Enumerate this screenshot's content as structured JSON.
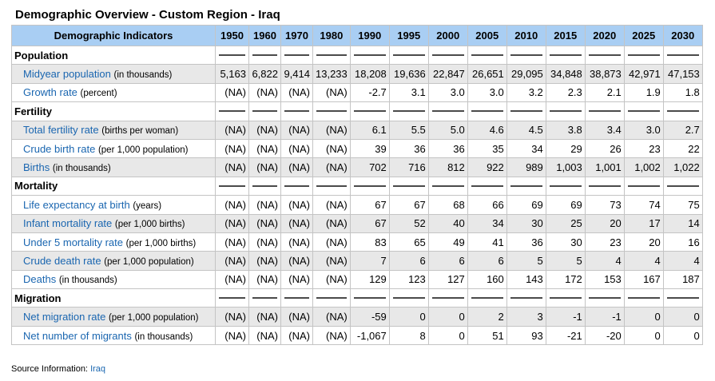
{
  "title": "Demographic Overview - Custom Region - Iraq",
  "header": {
    "indicator_label": "Demographic Indicators",
    "years": [
      "1950",
      "1960",
      "1970",
      "1980",
      "1990",
      "1995",
      "2000",
      "2005",
      "2010",
      "2015",
      "2020",
      "2025",
      "2030"
    ]
  },
  "sections": [
    {
      "name": "Population",
      "rows": [
        {
          "label": "Midyear population",
          "unit": "(in thousands)",
          "values": [
            "5,163",
            "6,822",
            "9,414",
            "13,233",
            "18,208",
            "19,636",
            "22,847",
            "26,651",
            "29,095",
            "34,848",
            "38,873",
            "42,971",
            "47,153"
          ]
        },
        {
          "label": "Growth rate",
          "unit": "(percent)",
          "values": [
            "(NA)",
            "(NA)",
            "(NA)",
            "(NA)",
            "-2.7",
            "3.1",
            "3.0",
            "3.0",
            "3.2",
            "2.3",
            "2.1",
            "1.9",
            "1.8"
          ]
        }
      ]
    },
    {
      "name": "Fertility",
      "rows": [
        {
          "label": "Total fertility rate",
          "unit": "(births per woman)",
          "values": [
            "(NA)",
            "(NA)",
            "(NA)",
            "(NA)",
            "6.1",
            "5.5",
            "5.0",
            "4.6",
            "4.5",
            "3.8",
            "3.4",
            "3.0",
            "2.7"
          ]
        },
        {
          "label": "Crude birth rate",
          "unit": "(per 1,000 population)",
          "values": [
            "(NA)",
            "(NA)",
            "(NA)",
            "(NA)",
            "39",
            "36",
            "36",
            "35",
            "34",
            "29",
            "26",
            "23",
            "22"
          ]
        },
        {
          "label": "Births",
          "unit": "(in thousands)",
          "values": [
            "(NA)",
            "(NA)",
            "(NA)",
            "(NA)",
            "702",
            "716",
            "812",
            "922",
            "989",
            "1,003",
            "1,001",
            "1,002",
            "1,022"
          ]
        }
      ]
    },
    {
      "name": "Mortality",
      "rows": [
        {
          "label": "Life expectancy at birth",
          "unit": "(years)",
          "values": [
            "(NA)",
            "(NA)",
            "(NA)",
            "(NA)",
            "67",
            "67",
            "68",
            "66",
            "69",
            "69",
            "73",
            "74",
            "75"
          ]
        },
        {
          "label": "Infant mortality rate",
          "unit": "(per 1,000 births)",
          "values": [
            "(NA)",
            "(NA)",
            "(NA)",
            "(NA)",
            "67",
            "52",
            "40",
            "34",
            "30",
            "25",
            "20",
            "17",
            "14"
          ]
        },
        {
          "label": "Under 5 mortality rate",
          "unit": "(per 1,000 births)",
          "values": [
            "(NA)",
            "(NA)",
            "(NA)",
            "(NA)",
            "83",
            "65",
            "49",
            "41",
            "36",
            "30",
            "23",
            "20",
            "16"
          ]
        },
        {
          "label": "Crude death rate",
          "unit": "(per 1,000 population)",
          "values": [
            "(NA)",
            "(NA)",
            "(NA)",
            "(NA)",
            "7",
            "6",
            "6",
            "6",
            "5",
            "5",
            "4",
            "4",
            "4"
          ]
        },
        {
          "label": "Deaths",
          "unit": "(in thousands)",
          "values": [
            "(NA)",
            "(NA)",
            "(NA)",
            "(NA)",
            "129",
            "123",
            "127",
            "160",
            "143",
            "172",
            "153",
            "167",
            "187"
          ]
        }
      ]
    },
    {
      "name": "Migration",
      "rows": [
        {
          "label": "Net migration rate",
          "unit": "(per 1,000 population)",
          "values": [
            "(NA)",
            "(NA)",
            "(NA)",
            "(NA)",
            "-59",
            "0",
            "0",
            "2",
            "3",
            "-1",
            "-1",
            "0",
            "0"
          ]
        },
        {
          "label": "Net number of migrants",
          "unit": "(in thousands)",
          "values": [
            "(NA)",
            "(NA)",
            "(NA)",
            "(NA)",
            "-1,067",
            "8",
            "0",
            "51",
            "93",
            "-21",
            "-20",
            "0",
            "0"
          ]
        }
      ]
    }
  ],
  "source": {
    "label": "Source Information:",
    "link": "Iraq"
  }
}
